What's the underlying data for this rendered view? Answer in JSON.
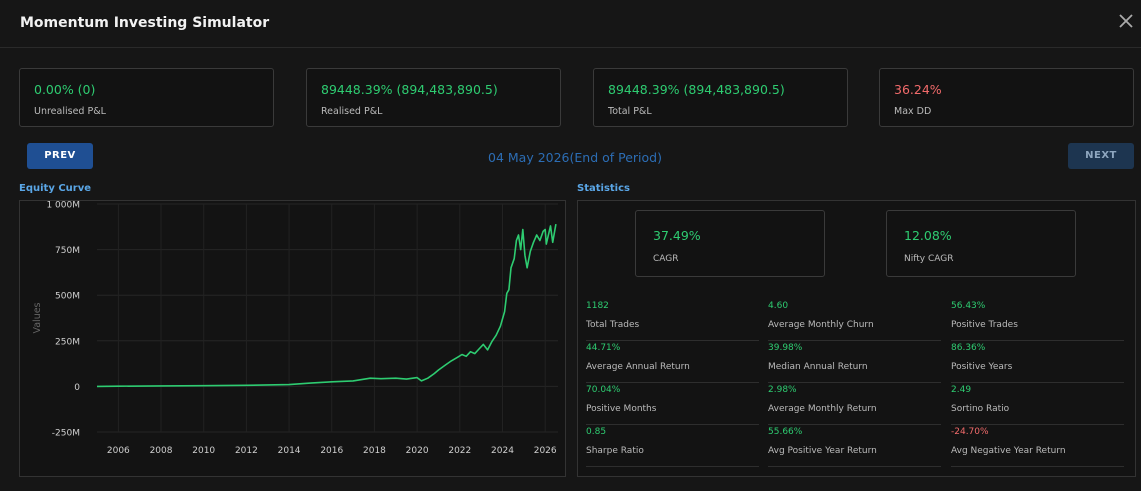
{
  "header": {
    "title": "Momentum Investing Simulator"
  },
  "cards": [
    {
      "value": "0.00% (0)",
      "label": "Unrealised P&L",
      "color": "#2ecc71"
    },
    {
      "value": "89448.39% (894,483,890.5)",
      "label": "Realised P&L",
      "color": "#2ecc71"
    },
    {
      "value": "89448.39% (894,483,890.5)",
      "label": "Total P&L",
      "color": "#2ecc71"
    },
    {
      "value": "36.24%",
      "label": "Max DD",
      "color": "#f26b6b"
    }
  ],
  "nav": {
    "prev_label": "PREV",
    "next_label": "NEXT",
    "period": "04 May 2026(End of Period)"
  },
  "equity": {
    "title": "Equity Curve"
  },
  "statistics": {
    "title": "Statistics",
    "cagr": {
      "value": "37.49%",
      "label": "CAGR"
    },
    "nifty_cagr": {
      "value": "12.08%",
      "label": "Nifty CAGR"
    },
    "items": [
      {
        "value": "1182",
        "label": "Total Trades",
        "color": "#2ecc71"
      },
      {
        "value": "4.60",
        "label": "Average Monthly Churn",
        "color": "#2ecc71"
      },
      {
        "value": "56.43%",
        "label": "Positive Trades",
        "color": "#2ecc71"
      },
      {
        "value": "44.71%",
        "label": "Average Annual Return",
        "color": "#2ecc71"
      },
      {
        "value": "39.98%",
        "label": "Median Annual Return",
        "color": "#2ecc71"
      },
      {
        "value": "86.36%",
        "label": "Positive Years",
        "color": "#2ecc71"
      },
      {
        "value": "70.04%",
        "label": "Positive Months",
        "color": "#2ecc71"
      },
      {
        "value": "2.98%",
        "label": "Average Monthly Return",
        "color": "#2ecc71"
      },
      {
        "value": "2.49",
        "label": "Sortino Ratio",
        "color": "#2ecc71"
      },
      {
        "value": "0.85",
        "label": "Sharpe Ratio",
        "color": "#2ecc71"
      },
      {
        "value": "55.66%",
        "label": "Avg Positive Year Return",
        "color": "#2ecc71"
      },
      {
        "value": "-24.70%",
        "label": "Avg Negative Year Return",
        "color": "#f26b6b"
      }
    ]
  },
  "chart_data": {
    "type": "line",
    "title": "",
    "xlabel": "",
    "ylabel": "Values",
    "xlim": [
      2005.0,
      2026.6
    ],
    "ylim": [
      -250,
      1000
    ],
    "x_ticks": [
      2006,
      2008,
      2010,
      2012,
      2014,
      2016,
      2018,
      2020,
      2022,
      2024,
      2026
    ],
    "y_ticks": [
      {
        "value": -250,
        "label": "-250M"
      },
      {
        "value": 0,
        "label": "0"
      },
      {
        "value": 250,
        "label": "250M"
      },
      {
        "value": 500,
        "label": "500M"
      },
      {
        "value": 750,
        "label": "750M"
      },
      {
        "value": 1000,
        "label": "1 000M"
      }
    ],
    "grid": true,
    "legend": "none",
    "series": [
      {
        "color": "#2ecc71",
        "points": [
          [
            2005.0,
            0
          ],
          [
            2006.0,
            1
          ],
          [
            2008.0,
            3
          ],
          [
            2010.0,
            4
          ],
          [
            2012.0,
            6
          ],
          [
            2014.0,
            10
          ],
          [
            2015.0,
            18
          ],
          [
            2016.0,
            25
          ],
          [
            2017.0,
            30
          ],
          [
            2017.8,
            45
          ],
          [
            2018.3,
            42
          ],
          [
            2019.0,
            45
          ],
          [
            2019.5,
            40
          ],
          [
            2020.0,
            48
          ],
          [
            2020.2,
            30
          ],
          [
            2020.5,
            45
          ],
          [
            2020.8,
            70
          ],
          [
            2021.0,
            90
          ],
          [
            2021.3,
            115
          ],
          [
            2021.6,
            140
          ],
          [
            2021.9,
            160
          ],
          [
            2022.1,
            175
          ],
          [
            2022.3,
            165
          ],
          [
            2022.5,
            190
          ],
          [
            2022.7,
            180
          ],
          [
            2022.9,
            205
          ],
          [
            2023.1,
            230
          ],
          [
            2023.3,
            200
          ],
          [
            2023.5,
            245
          ],
          [
            2023.7,
            280
          ],
          [
            2023.9,
            330
          ],
          [
            2024.1,
            410
          ],
          [
            2024.2,
            510
          ],
          [
            2024.3,
            530
          ],
          [
            2024.4,
            650
          ],
          [
            2024.55,
            700
          ],
          [
            2024.65,
            800
          ],
          [
            2024.75,
            830
          ],
          [
            2024.85,
            750
          ],
          [
            2024.95,
            860
          ],
          [
            2025.05,
            720
          ],
          [
            2025.15,
            650
          ],
          [
            2025.3,
            740
          ],
          [
            2025.45,
            790
          ],
          [
            2025.6,
            830
          ],
          [
            2025.75,
            800
          ],
          [
            2025.9,
            850
          ],
          [
            2026.0,
            860
          ],
          [
            2026.05,
            780
          ],
          [
            2026.15,
            830
          ],
          [
            2026.25,
            880
          ],
          [
            2026.35,
            790
          ],
          [
            2026.5,
            890
          ]
        ]
      }
    ]
  }
}
